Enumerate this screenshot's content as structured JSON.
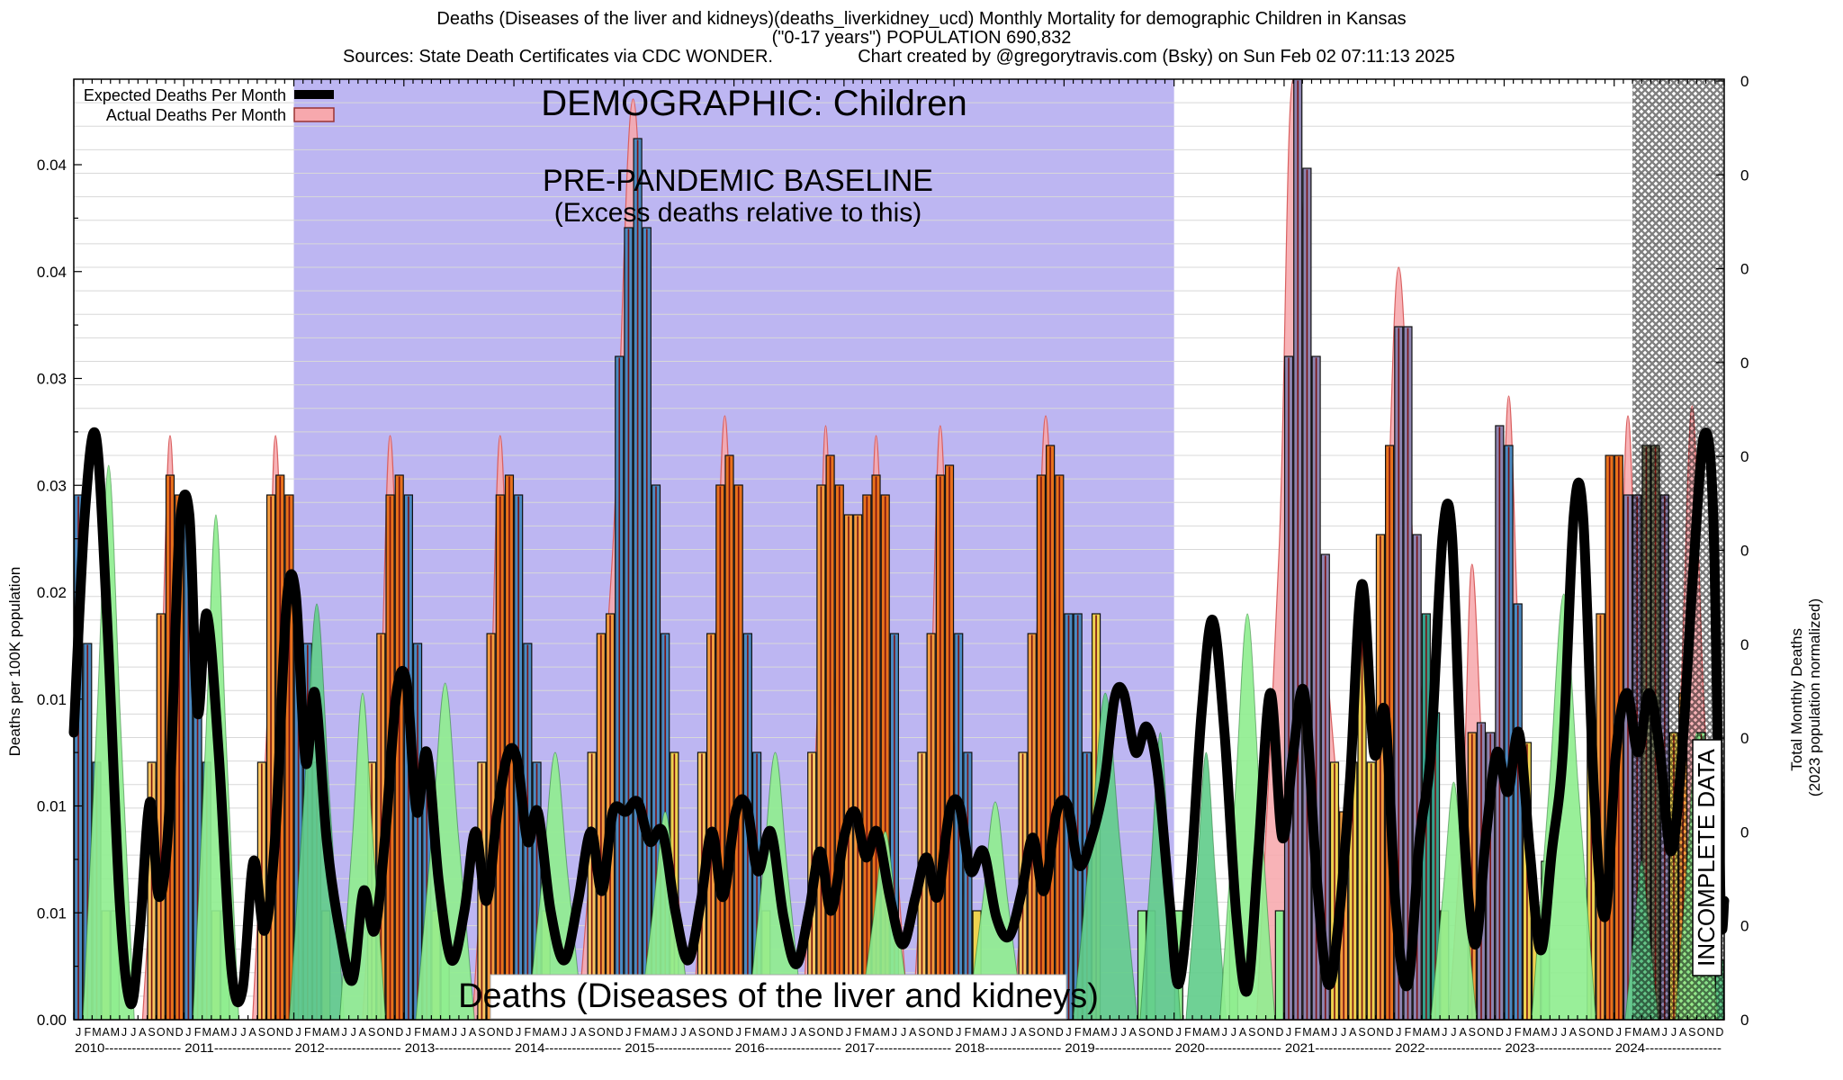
{
  "title": {
    "line1": "Deaths (Diseases of the liver and kidneys)(deaths_liverkidney_ucd) Monthly Mortality for demographic Children in Kansas",
    "line2": "(\"0-17 years\") POPULATION 690,832",
    "sources": "Sources: State Death Certificates via CDC WONDER.",
    "created": "Chart created by @gregorytravis.com (Bsky) on Sun Feb 02 07:11:13 2025"
  },
  "legend": {
    "expected_label": "Expected Deaths Per Month",
    "actual_label": "Actual Deaths Per Month"
  },
  "annotations": {
    "demographic": "DEMOGRAPHIC: Children",
    "baseline_line1": "PRE-PANDEMIC BASELINE",
    "baseline_line2": "(Excess deaths relative to this)",
    "bottom_label": "Deaths (Diseases of the liver and kidneys)",
    "incomplete": "INCOMPLETE DATA"
  },
  "axes": {
    "left_label": "Deaths per 100K population",
    "right_label_line1": "Total Monthly Deaths",
    "right_label_line2": "(2023 population normalized)",
    "left_ticks": [
      "0.04",
      "0.04",
      "0.03",
      "0.03",
      "0.02",
      "0.01",
      "0.01",
      "0.01",
      "0.00"
    ],
    "right_ticks": [
      "0",
      "0",
      "0",
      "0",
      "0",
      "0",
      "0",
      "0",
      "0",
      "0",
      "0"
    ],
    "month_letters": "JFMAMJJASOND",
    "years": [
      "2010",
      "2011",
      "2012",
      "2013",
      "2014",
      "2015",
      "2016",
      "2017",
      "2018",
      "2019",
      "2020",
      "2021",
      "2022",
      "2023",
      "2024"
    ]
  },
  "colors": {
    "lavender_baseline_band": "#bdb6f2",
    "pink_actual_fill": "#f7a8ad",
    "pink_actual_edge": "#d96060",
    "expected_line": "#000000",
    "bar_outline": "#111111",
    "maroon_impulse": "#7a1212",
    "gridline": "#d8d8d8",
    "B": "#4a8ac2",
    "O": "#e8711c",
    "o": "#f39c3d",
    "p": "#f8c661",
    "Y": "#eed24f",
    "g": "#90ee90",
    "G": "#63cd8c",
    "S": "#8d84b0",
    "V": "#7b8163",
    "T": "#35a18c"
  },
  "chart_data": {
    "type": "bar+line",
    "x_range_months": 180,
    "x_start_year": 2010,
    "y_axis_units": "deaths per 100K population",
    "y_max": 0.0475,
    "baseline_region_months": [
      24,
      120
    ],
    "incomplete_from_month": 170,
    "note_values_scale": "bar/line/mound values are deaths-per-100K x 10000",
    "bars": [
      [
        0,
        265,
        "B"
      ],
      [
        1,
        190,
        "B"
      ],
      [
        2,
        130,
        "B"
      ],
      [
        3,
        55,
        "Y"
      ],
      [
        4,
        55,
        "g"
      ],
      [
        8,
        130,
        "p"
      ],
      [
        9,
        205,
        "o"
      ],
      [
        10,
        275,
        "O"
      ],
      [
        11,
        265,
        "O"
      ],
      [
        12,
        255,
        "B"
      ],
      [
        13,
        190,
        "B"
      ],
      [
        14,
        130,
        "B"
      ],
      [
        15,
        55,
        "Y"
      ],
      [
        16,
        55,
        "g"
      ],
      [
        20,
        130,
        "p"
      ],
      [
        21,
        265,
        "o"
      ],
      [
        22,
        275,
        "O"
      ],
      [
        23,
        265,
        "O"
      ],
      [
        24,
        190,
        "B"
      ],
      [
        25,
        190,
        "B"
      ],
      [
        26,
        130,
        "B"
      ],
      [
        27,
        55,
        "Y"
      ],
      [
        32,
        130,
        "p"
      ],
      [
        33,
        195,
        "o"
      ],
      [
        34,
        265,
        "O"
      ],
      [
        35,
        275,
        "O"
      ],
      [
        36,
        265,
        "B"
      ],
      [
        37,
        190,
        "B"
      ],
      [
        38,
        130,
        "B"
      ],
      [
        39,
        55,
        "Y"
      ],
      [
        40,
        55,
        "g"
      ],
      [
        44,
        130,
        "p"
      ],
      [
        45,
        195,
        "o"
      ],
      [
        46,
        265,
        "O"
      ],
      [
        47,
        275,
        "O"
      ],
      [
        48,
        265,
        "B"
      ],
      [
        49,
        190,
        "B"
      ],
      [
        50,
        130,
        "B"
      ],
      [
        51,
        55,
        "Y"
      ],
      [
        56,
        135,
        "p"
      ],
      [
        57,
        195,
        "o"
      ],
      [
        58,
        205,
        "o"
      ],
      [
        59,
        335,
        "B"
      ],
      [
        60,
        400,
        "B"
      ],
      [
        61,
        445,
        "B"
      ],
      [
        62,
        400,
        "B"
      ],
      [
        63,
        270,
        "B"
      ],
      [
        64,
        195,
        "B"
      ],
      [
        65,
        135,
        "Y"
      ],
      [
        68,
        135,
        "p"
      ],
      [
        69,
        195,
        "o"
      ],
      [
        70,
        270,
        "O"
      ],
      [
        71,
        285,
        "O"
      ],
      [
        72,
        270,
        "O"
      ],
      [
        73,
        195,
        "B"
      ],
      [
        74,
        135,
        "B"
      ],
      [
        75,
        55,
        "Y"
      ],
      [
        80,
        135,
        "p"
      ],
      [
        81,
        270,
        "o"
      ],
      [
        82,
        285,
        "O"
      ],
      [
        83,
        270,
        "O"
      ],
      [
        84,
        255,
        "o"
      ],
      [
        85,
        255,
        "o"
      ],
      [
        86,
        265,
        "O"
      ],
      [
        87,
        275,
        "O"
      ],
      [
        88,
        265,
        "O"
      ],
      [
        89,
        195,
        "B"
      ],
      [
        92,
        135,
        "p"
      ],
      [
        93,
        195,
        "o"
      ],
      [
        94,
        275,
        "O"
      ],
      [
        95,
        280,
        "O"
      ],
      [
        96,
        195,
        "B"
      ],
      [
        97,
        135,
        "B"
      ],
      [
        98,
        55,
        "Y"
      ],
      [
        103,
        135,
        "p"
      ],
      [
        104,
        195,
        "o"
      ],
      [
        105,
        275,
        "O"
      ],
      [
        106,
        290,
        "O"
      ],
      [
        107,
        275,
        "O"
      ],
      [
        108,
        205,
        "B"
      ],
      [
        109,
        205,
        "B"
      ],
      [
        110,
        135,
        "B"
      ],
      [
        111,
        205,
        "Y"
      ],
      [
        116,
        55,
        "g"
      ],
      [
        117,
        55,
        "g"
      ],
      [
        120,
        55,
        "g"
      ],
      [
        126,
        55,
        "g"
      ],
      [
        131,
        55,
        "g"
      ],
      [
        132,
        335,
        "S"
      ],
      [
        133,
        475,
        "S"
      ],
      [
        134,
        430,
        "S"
      ],
      [
        135,
        335,
        "S"
      ],
      [
        136,
        235,
        "S"
      ],
      [
        137,
        130,
        "Y"
      ],
      [
        138,
        105,
        "o"
      ],
      [
        139,
        130,
        "Y"
      ],
      [
        140,
        210,
        "Y"
      ],
      [
        141,
        130,
        "Y"
      ],
      [
        142,
        245,
        "o"
      ],
      [
        143,
        290,
        "O"
      ],
      [
        144,
        350,
        "S"
      ],
      [
        145,
        350,
        "S"
      ],
      [
        146,
        245,
        "S"
      ],
      [
        147,
        205,
        "T"
      ],
      [
        148,
        155,
        "T"
      ],
      [
        149,
        55,
        "Y"
      ],
      [
        152,
        145,
        "o"
      ],
      [
        153,
        150,
        "S"
      ],
      [
        154,
        145,
        "S"
      ],
      [
        155,
        300,
        "S"
      ],
      [
        156,
        290,
        "B"
      ],
      [
        157,
        210,
        "B"
      ],
      [
        158,
        140,
        "Y"
      ],
      [
        159,
        55,
        "Y"
      ],
      [
        160,
        80,
        "g"
      ],
      [
        165,
        145,
        "Y"
      ],
      [
        166,
        205,
        "o"
      ],
      [
        167,
        285,
        "O"
      ],
      [
        168,
        285,
        "O"
      ],
      [
        169,
        265,
        "S"
      ],
      [
        170,
        265,
        "S"
      ],
      [
        171,
        290,
        "V"
      ],
      [
        172,
        290,
        "V"
      ],
      [
        173,
        265,
        "S"
      ],
      [
        174,
        145,
        "Y"
      ],
      [
        175,
        165,
        "o"
      ],
      [
        176,
        80,
        "Y"
      ],
      [
        177,
        145,
        "g"
      ],
      [
        178,
        60,
        "G"
      ],
      [
        179,
        30,
        "G"
      ]
    ],
    "green_mounds": [
      [
        3.8,
        280,
        2.8,
        "g"
      ],
      [
        15.5,
        255,
        2.5,
        "g"
      ],
      [
        26.5,
        210,
        3.0,
        "G"
      ],
      [
        31.5,
        165,
        2.5,
        "g"
      ],
      [
        40.5,
        170,
        3.2,
        "g"
      ],
      [
        52.5,
        135,
        3.0,
        "g"
      ],
      [
        64.5,
        105,
        2.8,
        "g"
      ],
      [
        76.5,
        135,
        3.0,
        "g"
      ],
      [
        88.5,
        95,
        2.8,
        "g"
      ],
      [
        100.5,
        110,
        3.0,
        "g"
      ],
      [
        112.5,
        165,
        3.5,
        "G"
      ],
      [
        118.5,
        145,
        2.2,
        "G"
      ],
      [
        123.5,
        135,
        2.2,
        "G"
      ],
      [
        128.0,
        205,
        3.0,
        "g"
      ],
      [
        150.5,
        120,
        2.5,
        "g"
      ],
      [
        162.5,
        215,
        3.5,
        "g"
      ],
      [
        171.0,
        80,
        1.8,
        "G"
      ],
      [
        177.0,
        145,
        2.3,
        "g"
      ]
    ],
    "actual_envelopes": [
      [
        7.5,
        13.5,
        10.5,
        295
      ],
      [
        19.5,
        25.5,
        22,
        295
      ],
      [
        31.5,
        38,
        34.5,
        295
      ],
      [
        43.5,
        50,
        46.5,
        295
      ],
      [
        55,
        67,
        61,
        465
      ],
      [
        67.5,
        74.5,
        71,
        305
      ],
      [
        79.5,
        85,
        82,
        300
      ],
      [
        85,
        91,
        87.5,
        295
      ],
      [
        91.5,
        98,
        94.5,
        300
      ],
      [
        102.5,
        110,
        106,
        305
      ],
      [
        129,
        140,
        133,
        480
      ],
      [
        140,
        150,
        144.5,
        380
      ],
      [
        150,
        156,
        152.5,
        230
      ],
      [
        153.5,
        160,
        156.5,
        315
      ],
      [
        166.5,
        173,
        169.5,
        305
      ],
      [
        173,
        180,
        176.5,
        310
      ]
    ],
    "expected_line": [
      [
        0,
        145
      ],
      [
        1.2,
        255
      ],
      [
        2.4,
        295
      ],
      [
        3.6,
        205
      ],
      [
        5,
        60
      ],
      [
        6.2,
        8
      ],
      [
        7.2,
        45
      ],
      [
        8.3,
        110
      ],
      [
        9.3,
        62
      ],
      [
        10.4,
        105
      ],
      [
        11.5,
        245
      ],
      [
        12.6,
        255
      ],
      [
        13.5,
        155
      ],
      [
        14.5,
        205
      ],
      [
        15.8,
        135
      ],
      [
        17.2,
        25
      ],
      [
        18.4,
        15
      ],
      [
        19.6,
        80
      ],
      [
        20.8,
        45
      ],
      [
        22,
        95
      ],
      [
        23.2,
        210
      ],
      [
        24.2,
        215
      ],
      [
        25.3,
        130
      ],
      [
        26.3,
        165
      ],
      [
        27.6,
        90
      ],
      [
        29,
        45
      ],
      [
        30.4,
        20
      ],
      [
        31.6,
        65
      ],
      [
        32.8,
        45
      ],
      [
        34,
        95
      ],
      [
        35.2,
        165
      ],
      [
        36.3,
        170
      ],
      [
        37.4,
        105
      ],
      [
        38.5,
        135
      ],
      [
        39.8,
        70
      ],
      [
        41.2,
        30
      ],
      [
        42.6,
        55
      ],
      [
        43.8,
        95
      ],
      [
        45,
        60
      ],
      [
        46.2,
        105
      ],
      [
        47.4,
        135
      ],
      [
        48.4,
        130
      ],
      [
        49.5,
        90
      ],
      [
        50.6,
        105
      ],
      [
        52,
        55
      ],
      [
        53.5,
        30
      ],
      [
        55,
        60
      ],
      [
        56.4,
        95
      ],
      [
        57.6,
        65
      ],
      [
        58.8,
        105
      ],
      [
        60.2,
        105
      ],
      [
        61.5,
        110
      ],
      [
        62.8,
        90
      ],
      [
        64.2,
        95
      ],
      [
        65.6,
        55
      ],
      [
        67,
        30
      ],
      [
        68.4,
        60
      ],
      [
        69.6,
        95
      ],
      [
        70.8,
        62
      ],
      [
        72.2,
        105
      ],
      [
        73.4,
        108
      ],
      [
        74.6,
        75
      ],
      [
        76,
        95
      ],
      [
        77.4,
        52
      ],
      [
        78.8,
        28
      ],
      [
        80.2,
        55
      ],
      [
        81.4,
        85
      ],
      [
        82.6,
        55
      ],
      [
        84,
        92
      ],
      [
        85.2,
        105
      ],
      [
        86.4,
        82
      ],
      [
        87.6,
        95
      ],
      [
        89,
        62
      ],
      [
        90.4,
        38
      ],
      [
        91.8,
        62
      ],
      [
        93,
        82
      ],
      [
        94.2,
        62
      ],
      [
        95.5,
        105
      ],
      [
        96.6,
        108
      ],
      [
        97.8,
        75
      ],
      [
        99.2,
        85
      ],
      [
        100.6,
        52
      ],
      [
        102,
        42
      ],
      [
        103.4,
        65
      ],
      [
        104.6,
        92
      ],
      [
        105.8,
        65
      ],
      [
        107.2,
        105
      ],
      [
        108.4,
        108
      ],
      [
        109.6,
        78
      ],
      [
        111,
        92
      ],
      [
        112.4,
        120
      ],
      [
        113.5,
        162
      ],
      [
        114.5,
        165
      ],
      [
        115.8,
        135
      ],
      [
        117,
        148
      ],
      [
        118.2,
        125
      ],
      [
        119.5,
        60
      ],
      [
        120.5,
        18
      ],
      [
        121.8,
        72
      ],
      [
        123,
        155
      ],
      [
        124.2,
        202
      ],
      [
        125.5,
        145
      ],
      [
        126.8,
        52
      ],
      [
        128,
        15
      ],
      [
        129.2,
        85
      ],
      [
        130.5,
        165
      ],
      [
        131.8,
        92
      ],
      [
        133,
        135
      ],
      [
        134.2,
        165
      ],
      [
        135.5,
        75
      ],
      [
        136.8,
        18
      ],
      [
        138,
        52
      ],
      [
        139.2,
        122
      ],
      [
        140.5,
        220
      ],
      [
        141.8,
        135
      ],
      [
        143,
        155
      ],
      [
        144.2,
        55
      ],
      [
        145.5,
        18
      ],
      [
        146.8,
        92
      ],
      [
        148,
        135
      ],
      [
        149.3,
        245
      ],
      [
        150.3,
        245
      ],
      [
        151.5,
        105
      ],
      [
        152.8,
        38
      ],
      [
        154,
        92
      ],
      [
        155.2,
        135
      ],
      [
        156.4,
        115
      ],
      [
        157.6,
        145
      ],
      [
        158.8,
        85
      ],
      [
        160,
        35
      ],
      [
        161.2,
        85
      ],
      [
        162.4,
        135
      ],
      [
        163.6,
        255
      ],
      [
        164.6,
        255
      ],
      [
        165.8,
        115
      ],
      [
        167,
        52
      ],
      [
        168.2,
        135
      ],
      [
        169.4,
        165
      ],
      [
        170.6,
        135
      ],
      [
        171.8,
        165
      ],
      [
        173,
        135
      ],
      [
        174.2,
        85
      ],
      [
        175.4,
        135
      ],
      [
        176.6,
        225
      ],
      [
        177.8,
        295
      ],
      [
        178.8,
        255
      ],
      [
        179.6,
        60
      ],
      [
        180,
        60
      ]
    ]
  }
}
